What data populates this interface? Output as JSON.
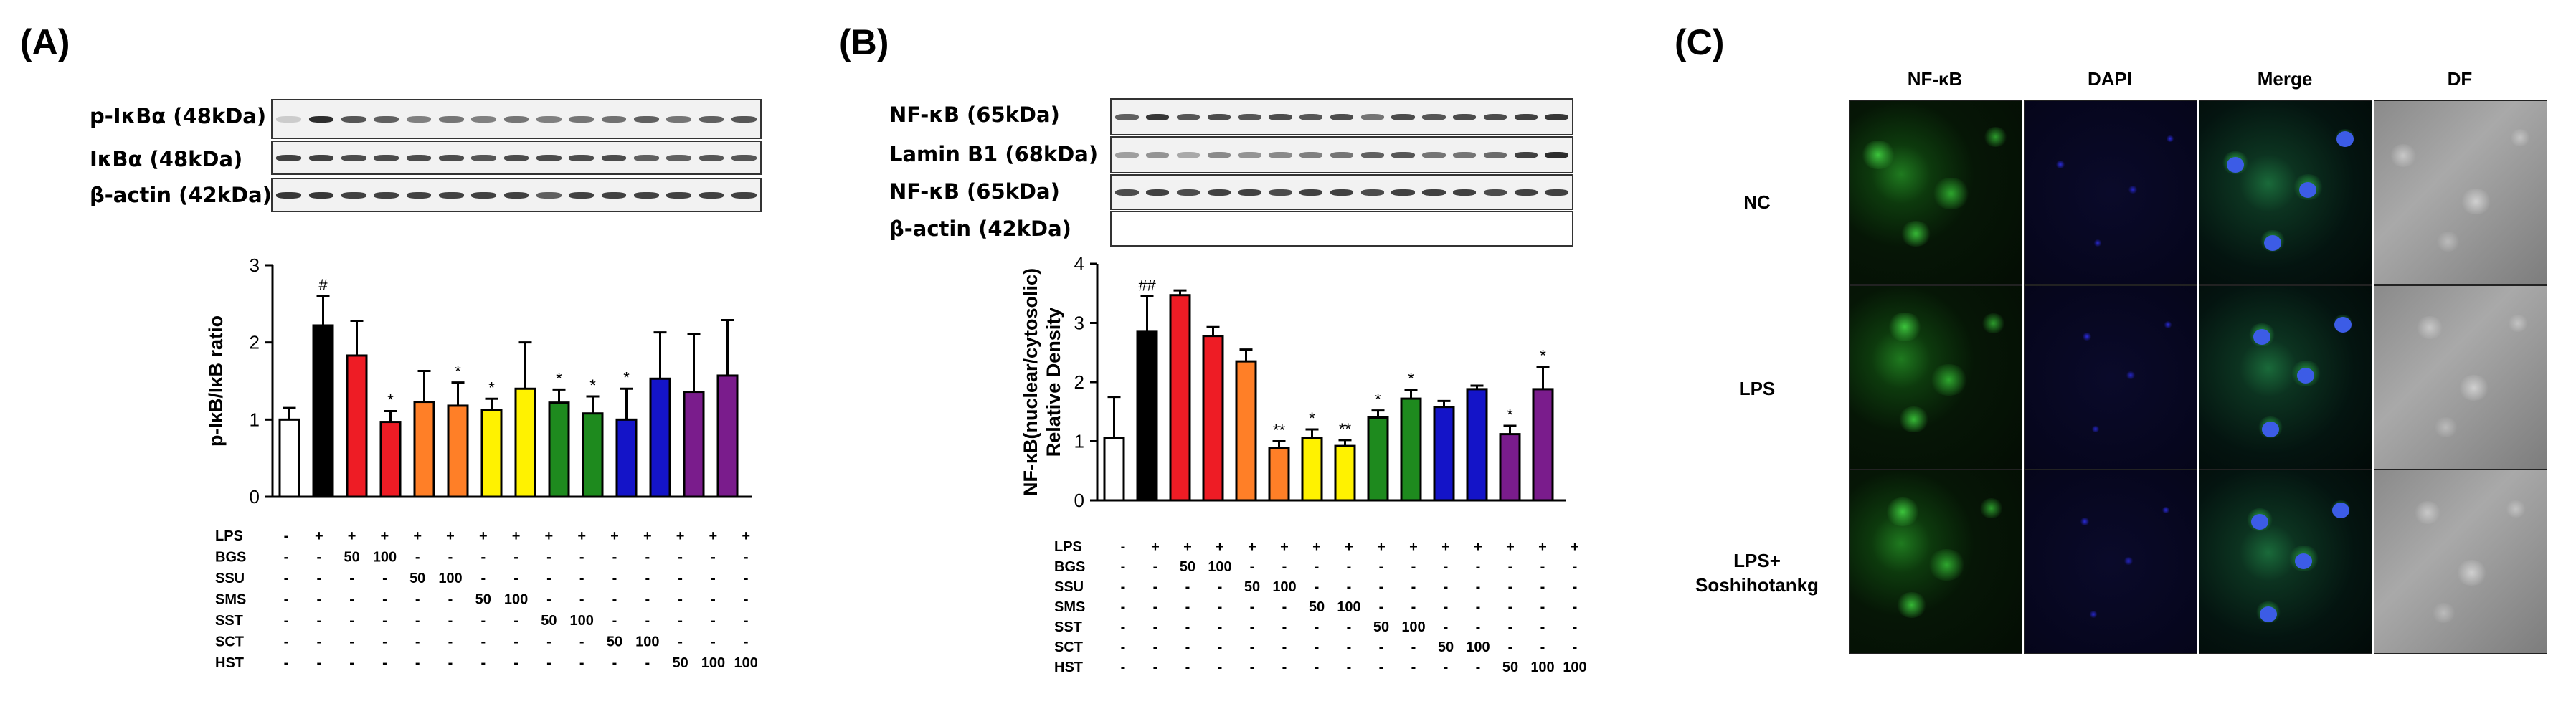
{
  "panels": {
    "a": "(A)",
    "b": "(B)",
    "c": "(C)"
  },
  "blot_a": {
    "labels": [
      "p-IκBα (48kDa)",
      "IκBα (48kDa)",
      "β-actin (42kDa)"
    ],
    "phospho_band_intensity": [
      0.18,
      0.95,
      0.75,
      0.7,
      0.55,
      0.6,
      0.55,
      0.6,
      0.55,
      0.6,
      0.62,
      0.7,
      0.6,
      0.7,
      0.75
    ],
    "total_band_intensity": [
      0.85,
      0.85,
      0.8,
      0.8,
      0.8,
      0.8,
      0.75,
      0.8,
      0.8,
      0.8,
      0.8,
      0.7,
      0.7,
      0.75,
      0.75
    ],
    "actin_band_intensity": [
      0.9,
      0.9,
      0.85,
      0.85,
      0.85,
      0.85,
      0.85,
      0.85,
      0.7,
      0.85,
      0.85,
      0.85,
      0.85,
      0.85,
      0.85
    ]
  },
  "blot_b": {
    "labels": [
      "NF-κB (65kDa)",
      "Lamin B1 (68kDa)",
      "NF-κB (65kDa)",
      "β-actin (42kDa)"
    ],
    "nuclear_band_intensity": [
      0.7,
      0.9,
      0.75,
      0.8,
      0.75,
      0.8,
      0.75,
      0.8,
      0.6,
      0.8,
      0.75,
      0.8,
      0.8,
      0.85,
      0.9
    ],
    "lamin_band_intensity": [
      0.4,
      0.45,
      0.35,
      0.5,
      0.45,
      0.5,
      0.55,
      0.6,
      0.7,
      0.75,
      0.6,
      0.6,
      0.65,
      0.85,
      0.95
    ],
    "cyto_band_intensity": [
      0.8,
      0.85,
      0.8,
      0.85,
      0.85,
      0.8,
      0.85,
      0.85,
      0.8,
      0.85,
      0.85,
      0.85,
      0.8,
      0.85,
      0.85
    ],
    "actin_band_intensity": [
      0.0,
      0.0,
      0.0,
      0.0,
      0.0,
      0.0,
      0.0,
      0.0,
      0.0,
      0.0,
      0.0,
      0.0,
      0.0,
      0.0,
      0.0
    ]
  },
  "treatment_table": {
    "rows": [
      {
        "name": "LPS",
        "cells": [
          "-",
          "+",
          "+",
          "+",
          "+",
          "+",
          "+",
          "+",
          "+",
          "+",
          "+",
          "+",
          "+",
          "+",
          "+"
        ]
      },
      {
        "name": "BGS",
        "cells": [
          "-",
          "-",
          "50",
          "100",
          "-",
          "-",
          "-",
          "-",
          "-",
          "-",
          "-",
          "-",
          "-",
          "-",
          "-"
        ]
      },
      {
        "name": "SSU",
        "cells": [
          "-",
          "-",
          "-",
          "-",
          "50",
          "100",
          "-",
          "-",
          "-",
          "-",
          "-",
          "-",
          "-",
          "-",
          "-"
        ]
      },
      {
        "name": "SMS",
        "cells": [
          "-",
          "-",
          "-",
          "-",
          "-",
          "-",
          "50",
          "100",
          "-",
          "-",
          "-",
          "-",
          "-",
          "-",
          "-"
        ]
      },
      {
        "name": "SST",
        "cells": [
          "-",
          "-",
          "-",
          "-",
          "-",
          "-",
          "-",
          "-",
          "50",
          "100",
          "-",
          "-",
          "-",
          "-",
          "-"
        ]
      },
      {
        "name": "SCT",
        "cells": [
          "-",
          "-",
          "-",
          "-",
          "-",
          "-",
          "-",
          "-",
          "-",
          "-",
          "50",
          "100",
          "-",
          "-",
          "-"
        ]
      },
      {
        "name": "HST",
        "cells": [
          "-",
          "-",
          "-",
          "-",
          "-",
          "-",
          "-",
          "-",
          "-",
          "-",
          "-",
          "-",
          "50",
          "100",
          "100"
        ]
      }
    ]
  },
  "chart_data": [
    {
      "type": "bar",
      "ylabel": "p-IκB/IκB ratio",
      "ylim": [
        0,
        3
      ],
      "yticks": [
        "0",
        "1",
        "2",
        "3"
      ],
      "values": [
        1.0,
        2.22,
        1.83,
        0.97,
        1.23,
        1.18,
        1.12,
        1.4,
        1.22,
        1.08,
        1.0,
        1.53,
        1.36,
        1.57
      ],
      "errors": [
        0.15,
        0.38,
        0.45,
        0.14,
        0.4,
        0.3,
        0.15,
        0.6,
        0.17,
        0.22,
        0.4,
        0.6,
        0.75,
        0.72
      ],
      "colors": [
        "#ffffff",
        "#000000",
        "#ee1c25",
        "#ee1c25",
        "#ff7f27",
        "#ff7f27",
        "#fff200",
        "#fff200",
        "#1e8a1e",
        "#1e8a1e",
        "#1414c8",
        "#1414c8",
        "#7a1c8c",
        "#7a1c8c"
      ],
      "significance": [
        "",
        "#",
        "",
        "*",
        "",
        "*",
        "*",
        "",
        "*",
        "*",
        "*",
        "",
        "",
        ""
      ]
    },
    {
      "type": "bar",
      "ylabel": "NF-κB(nuclear/cytosolic)\nRelative Density",
      "ylim": [
        0,
        4
      ],
      "yticks": [
        "0",
        "1",
        "2",
        "3",
        "4"
      ],
      "values": [
        1.05,
        2.85,
        3.47,
        2.78,
        2.35,
        0.88,
        1.05,
        0.92,
        1.4,
        1.72,
        1.58,
        1.88,
        1.12,
        1.88
      ],
      "errors": [
        0.7,
        0.6,
        0.08,
        0.15,
        0.2,
        0.12,
        0.15,
        0.1,
        0.12,
        0.15,
        0.1,
        0.06,
        0.14,
        0.38
      ],
      "colors": [
        "#ffffff",
        "#000000",
        "#ee1c25",
        "#ee1c25",
        "#ff7f27",
        "#ff7f27",
        "#fff200",
        "#fff200",
        "#1e8a1e",
        "#1e8a1e",
        "#1414c8",
        "#1414c8",
        "#7a1c8c",
        "#7a1c8c"
      ],
      "significance": [
        "",
        "##",
        "",
        "",
        "",
        "**",
        "*",
        "**",
        "*",
        "*",
        "",
        "",
        "*",
        "*"
      ]
    }
  ],
  "fluorescence": {
    "columns": [
      "NF-κB",
      "DAPI",
      "Merge",
      "DF"
    ],
    "rows": [
      "NC",
      "LPS",
      "LPS+\nSoshihotankg"
    ]
  }
}
